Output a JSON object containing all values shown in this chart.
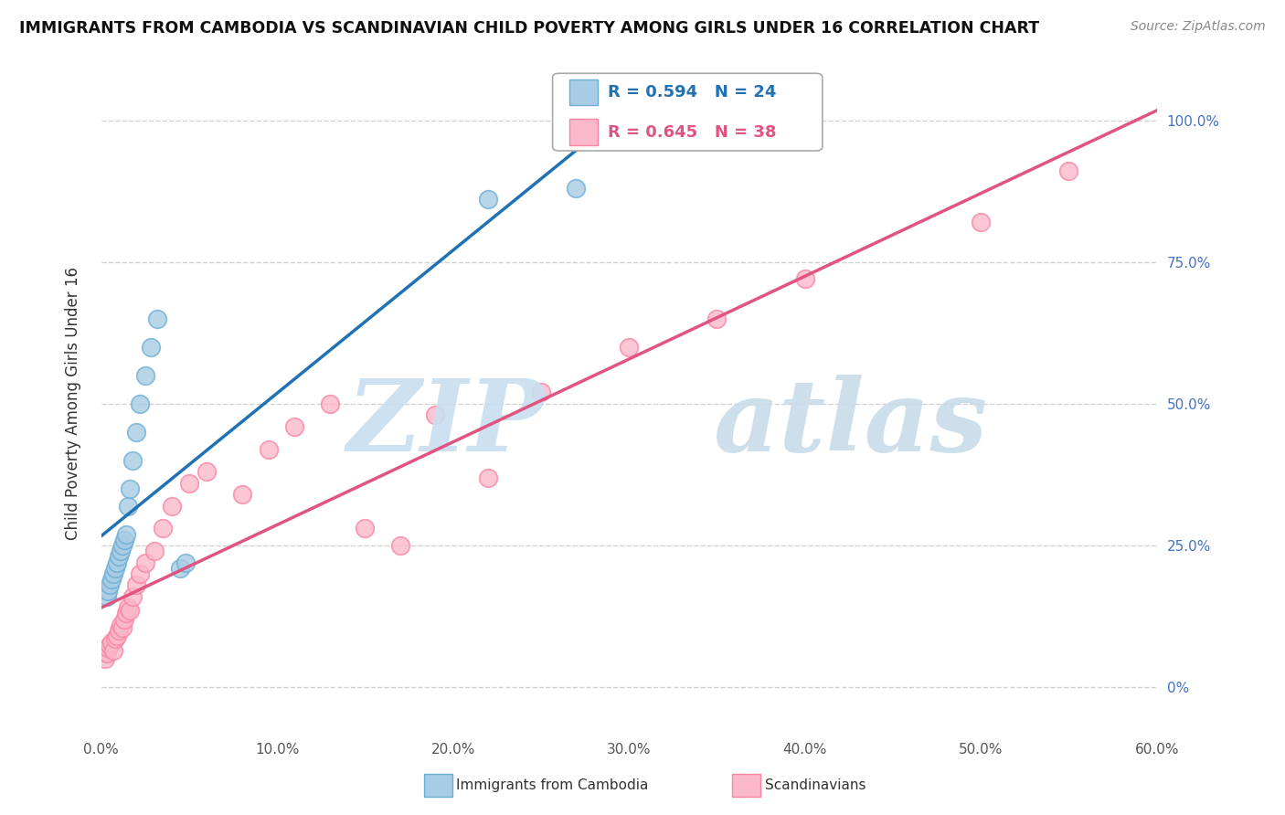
{
  "title": "IMMIGRANTS FROM CAMBODIA VS SCANDINAVIAN CHILD POVERTY AMONG GIRLS UNDER 16 CORRELATION CHART",
  "source": "Source: ZipAtlas.com",
  "ylabel": "Child Poverty Among Girls Under 16",
  "xlim": [
    0.0,
    60.0
  ],
  "ylim": [
    -8.0,
    108.0
  ],
  "legend_blue_R": "R = 0.594",
  "legend_blue_N": "N = 24",
  "legend_pink_R": "R = 0.645",
  "legend_pink_N": "N = 38",
  "blue_color": "#a8cce4",
  "blue_edge_color": "#6baed6",
  "pink_color": "#fcb8cb",
  "pink_edge_color": "#f984a1",
  "blue_line_color": "#2171b5",
  "pink_line_color": "#e05580",
  "background_color": "#ffffff",
  "grid_color": "#cccccc",
  "blue_x": [
    0.3,
    0.4,
    0.5,
    0.6,
    0.7,
    0.8,
    0.9,
    1.0,
    1.1,
    1.2,
    1.3,
    1.4,
    1.5,
    1.6,
    1.8,
    2.0,
    2.2,
    2.5,
    2.8,
    3.2,
    4.5,
    4.8,
    22.0,
    27.0
  ],
  "blue_y": [
    16.0,
    17.0,
    18.0,
    19.0,
    20.0,
    21.0,
    22.0,
    23.0,
    24.0,
    25.0,
    26.0,
    27.0,
    32.0,
    35.0,
    40.0,
    45.0,
    50.0,
    55.0,
    60.0,
    65.0,
    21.0,
    22.0,
    86.0,
    88.0
  ],
  "pink_x": [
    0.2,
    0.3,
    0.4,
    0.5,
    0.6,
    0.7,
    0.8,
    0.9,
    1.0,
    1.1,
    1.2,
    1.3,
    1.4,
    1.5,
    1.6,
    1.8,
    2.0,
    2.2,
    2.5,
    3.0,
    3.5,
    4.0,
    5.0,
    6.0,
    8.0,
    9.5,
    11.0,
    13.0,
    15.0,
    17.0,
    19.0,
    22.0,
    25.0,
    30.0,
    35.0,
    40.0,
    50.0,
    55.0
  ],
  "pink_y": [
    5.0,
    6.0,
    7.0,
    7.5,
    8.0,
    6.5,
    8.5,
    9.0,
    10.0,
    11.0,
    10.5,
    12.0,
    13.0,
    14.0,
    13.5,
    16.0,
    18.0,
    20.0,
    22.0,
    24.0,
    28.0,
    32.0,
    36.0,
    38.0,
    34.0,
    42.0,
    46.0,
    50.0,
    28.0,
    25.0,
    48.0,
    37.0,
    52.0,
    60.0,
    65.0,
    72.0,
    82.0,
    91.0
  ],
  "xticks": [
    0,
    10,
    20,
    30,
    40,
    50,
    60
  ],
  "xtick_labels": [
    "0.0%",
    "10.0%",
    "20.0%",
    "30.0%",
    "40.0%",
    "50.0%",
    "60.0%"
  ],
  "yticks": [
    0,
    25,
    50,
    75,
    100
  ],
  "ytick_labels": [
    "0%",
    "25.0%",
    "50.0%",
    "75.0%",
    "100.0%"
  ]
}
